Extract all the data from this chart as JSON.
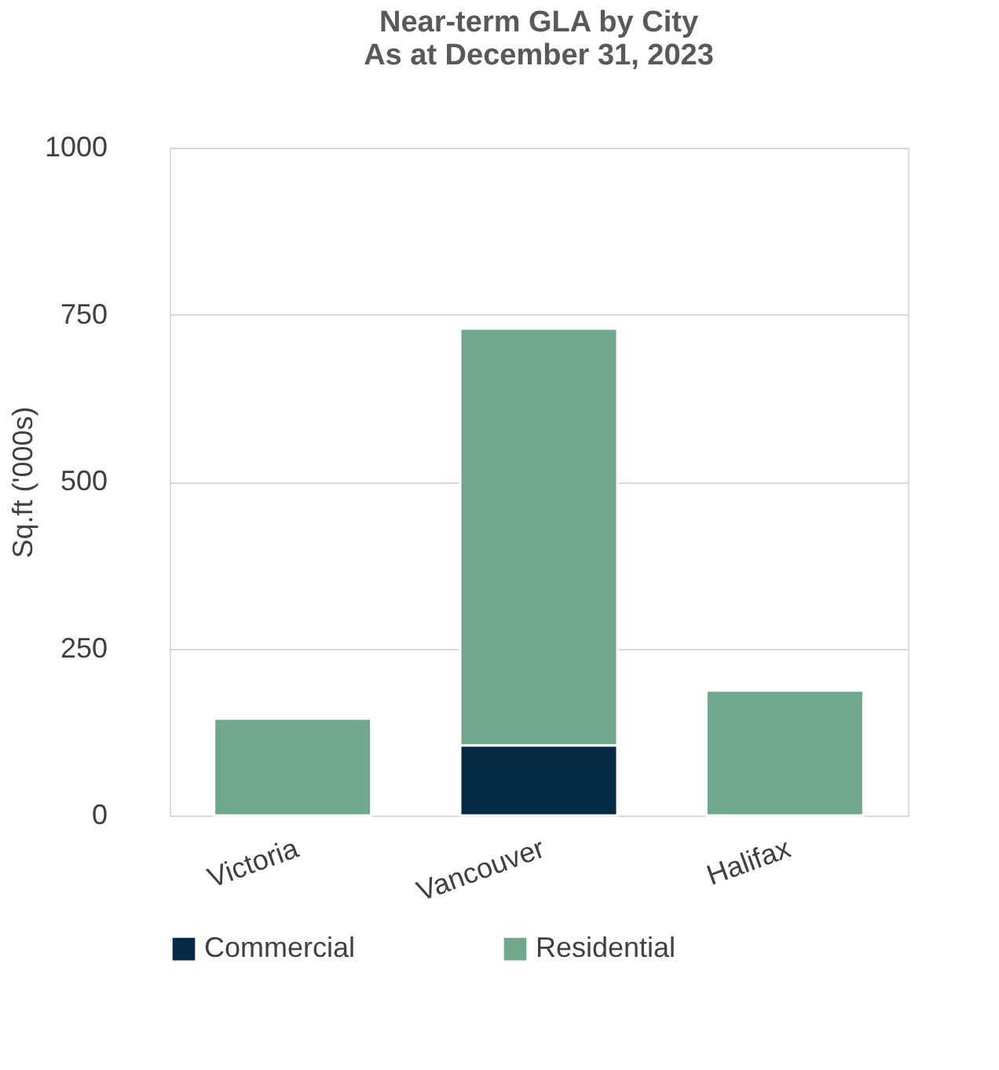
{
  "chart_data": {
    "type": "bar",
    "title": [
      "Near-term GLA by City",
      "As at December 31, 2023"
    ],
    "ylabel": "Sq.ft ('000s)",
    "categories": [
      "Victoria",
      "Vancouver",
      "Halifax"
    ],
    "series": [
      {
        "name": "Commercial",
        "color": "#062b47",
        "values": [
          0,
          105,
          0
        ]
      },
      {
        "name": "Residential",
        "color": "#70a88d",
        "values": [
          145,
          624,
          187
        ]
      }
    ],
    "stacked": true,
    "ylim": [
      0,
      1000
    ],
    "yticks": [
      0,
      250,
      500,
      750,
      1000
    ],
    "grid": "y",
    "legend": "bottom"
  }
}
